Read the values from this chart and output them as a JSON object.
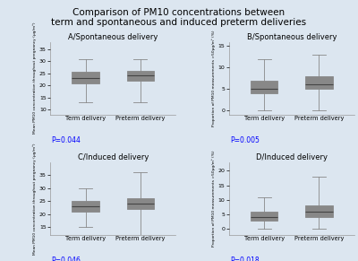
{
  "title": "Comparison of PM10 concentrations between\nterm and spontaneous and induced preterm deliveries",
  "title_fontsize": 7.5,
  "bg_color": "#dce6f0",
  "box_color": "#7a94aa",
  "panels": [
    {
      "label": "A/Spontaneous delivery",
      "ylabel": "Mean PM10 concentration throughout pregnancy (µg/m³)",
      "pvalue": "P=0.044",
      "ylim": [
        8,
        38
      ],
      "yticks": [
        10,
        15,
        20,
        25,
        30,
        35
      ],
      "groups": [
        "Term delivery",
        "Preterm delivery"
      ],
      "boxes": [
        {
          "med": 23,
          "q1": 21,
          "q3": 25.5,
          "whislo": 13,
          "whishi": 31
        },
        {
          "med": 24,
          "q1": 22,
          "q3": 26,
          "whislo": 13,
          "whishi": 31
        }
      ]
    },
    {
      "label": "B/Spontaneous delivery",
      "ylabel": "Proportion of PM10 measurements >50µg/m³ (%)",
      "pvalue": "P=0.005",
      "ylim": [
        -1,
        16
      ],
      "yticks": [
        0,
        5,
        10,
        15
      ],
      "groups": [
        "Term delivery",
        "Preterm delivery"
      ],
      "boxes": [
        {
          "med": 5,
          "q1": 4,
          "q3": 7,
          "whislo": 0,
          "whishi": 12
        },
        {
          "med": 6,
          "q1": 5,
          "q3": 8,
          "whislo": 0,
          "whishi": 13
        }
      ]
    },
    {
      "label": "C/Induced delivery",
      "ylabel": "Mean PM10 concentration throughout pregnancy (µg/m³)",
      "pvalue": "P=0.046",
      "ylim": [
        12,
        40
      ],
      "yticks": [
        15,
        20,
        25,
        30,
        35
      ],
      "groups": [
        "Term delivery",
        "Preterm delivery"
      ],
      "boxes": [
        {
          "med": 23,
          "q1": 21,
          "q3": 25,
          "whislo": 15,
          "whishi": 30
        },
        {
          "med": 24,
          "q1": 22,
          "q3": 26,
          "whislo": 12,
          "whishi": 36
        }
      ]
    },
    {
      "label": "D/Induced delivery",
      "ylabel": "Proportion of PM10 measurements >50µg/m³ (%)",
      "pvalue": "P=0.018",
      "ylim": [
        -2,
        23
      ],
      "yticks": [
        0,
        5,
        10,
        15,
        20
      ],
      "groups": [
        "Term delivery",
        "Preterm delivery"
      ],
      "boxes": [
        {
          "med": 4,
          "q1": 3,
          "q3": 6,
          "whislo": 0,
          "whishi": 11
        },
        {
          "med": 6,
          "q1": 4,
          "q3": 8,
          "whislo": 0,
          "whishi": 18
        }
      ]
    }
  ]
}
